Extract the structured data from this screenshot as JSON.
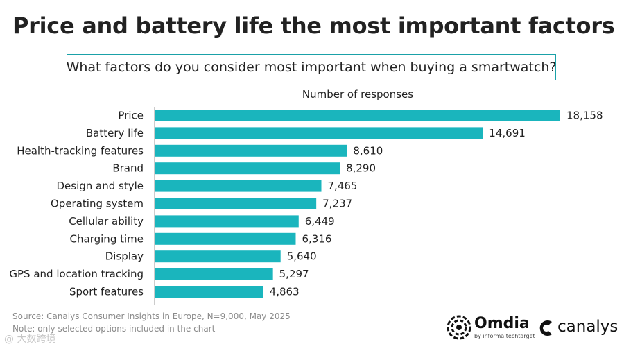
{
  "header": {
    "title": "Price and battery life the most important factors",
    "question": "What factors do you consider most important when buying a smartwatch?",
    "subtitle": "Number of responses"
  },
  "chart_data": {
    "type": "bar",
    "orientation": "horizontal",
    "title": "Price and battery life the most important factors",
    "xlabel": "Number of responses",
    "ylabel": "",
    "categories": [
      "Price",
      "Battery life",
      "Health-tracking features",
      "Brand",
      "Design and style",
      "Operating system",
      "Cellular ability",
      "Charging time",
      "Display",
      "GPS and location tracking",
      "Sport features"
    ],
    "values": [
      18158,
      14691,
      8610,
      8290,
      7465,
      7237,
      6449,
      6316,
      5640,
      5297,
      4863
    ],
    "value_labels": [
      "18,158",
      "14,691",
      "8,610",
      "8,290",
      "7,465",
      "7,237",
      "6,449",
      "6,316",
      "5,640",
      "5,297",
      "4,863"
    ],
    "xlim": [
      0,
      18158
    ],
    "bar_color": "#1ab5bd",
    "grid": false
  },
  "footer": {
    "source": "Source: Canalys Consumer Insights in Europe, N=9,000, May 2025",
    "note": "Note: only selected options included in the chart",
    "watermark": "@ 大数跨境"
  },
  "logos": {
    "omdia": "Omdia",
    "omdia_sub": "by informa techtarget",
    "canalys": "canalys"
  },
  "colors": {
    "accent": "#1ab5bd",
    "box_border": "#1aa1a8"
  }
}
